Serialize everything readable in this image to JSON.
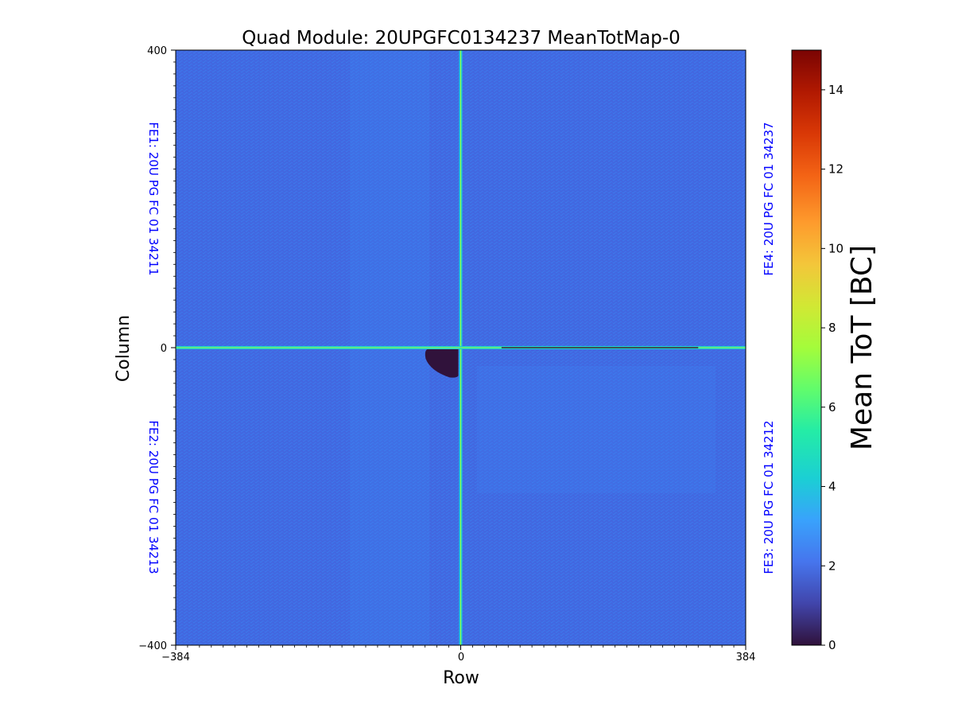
{
  "chart_data": {
    "type": "heatmap",
    "title": "Quad Module: 20UPGFC0134237 MeanTotMap-0",
    "xlabel": "Row",
    "ylabel": "Column",
    "xlim": [
      -384,
      384
    ],
    "ylim": [
      -400,
      400
    ],
    "x_tick_labels": [
      "−384",
      "0",
      "384"
    ],
    "y_tick_labels": [
      "400",
      "0",
      "−400"
    ],
    "x_ticks": [
      -384,
      0,
      384
    ],
    "y_ticks": [
      400,
      0,
      -400
    ],
    "colorbar": {
      "label": "Mean ToT [BC]",
      "range": [
        0,
        15
      ],
      "tick_values": [
        0,
        2,
        4,
        6,
        8,
        10,
        12,
        14
      ],
      "tick_labels": [
        "0",
        "2",
        "4",
        "6",
        "8",
        "10",
        "12",
        "14"
      ],
      "colormap": "turbo"
    },
    "background_value": 2.2,
    "boundary_value": 5.0,
    "low_region": {
      "description_value": 0.1,
      "x_range": [
        -45,
        0
      ],
      "y_range": [
        0,
        -40
      ]
    },
    "front_ends": [
      {
        "label": "FE1: 20U PG FC 01 34211",
        "quadrant": "top-left"
      },
      {
        "label": "FE2: 20U PG FC 01 34213",
        "quadrant": "bottom-left"
      },
      {
        "label": "FE3: 20U PG FC 01 34212",
        "quadrant": "bottom-right"
      },
      {
        "label": "FE4: 20U PG FC 01 34237",
        "quadrant": "top-right"
      }
    ]
  }
}
